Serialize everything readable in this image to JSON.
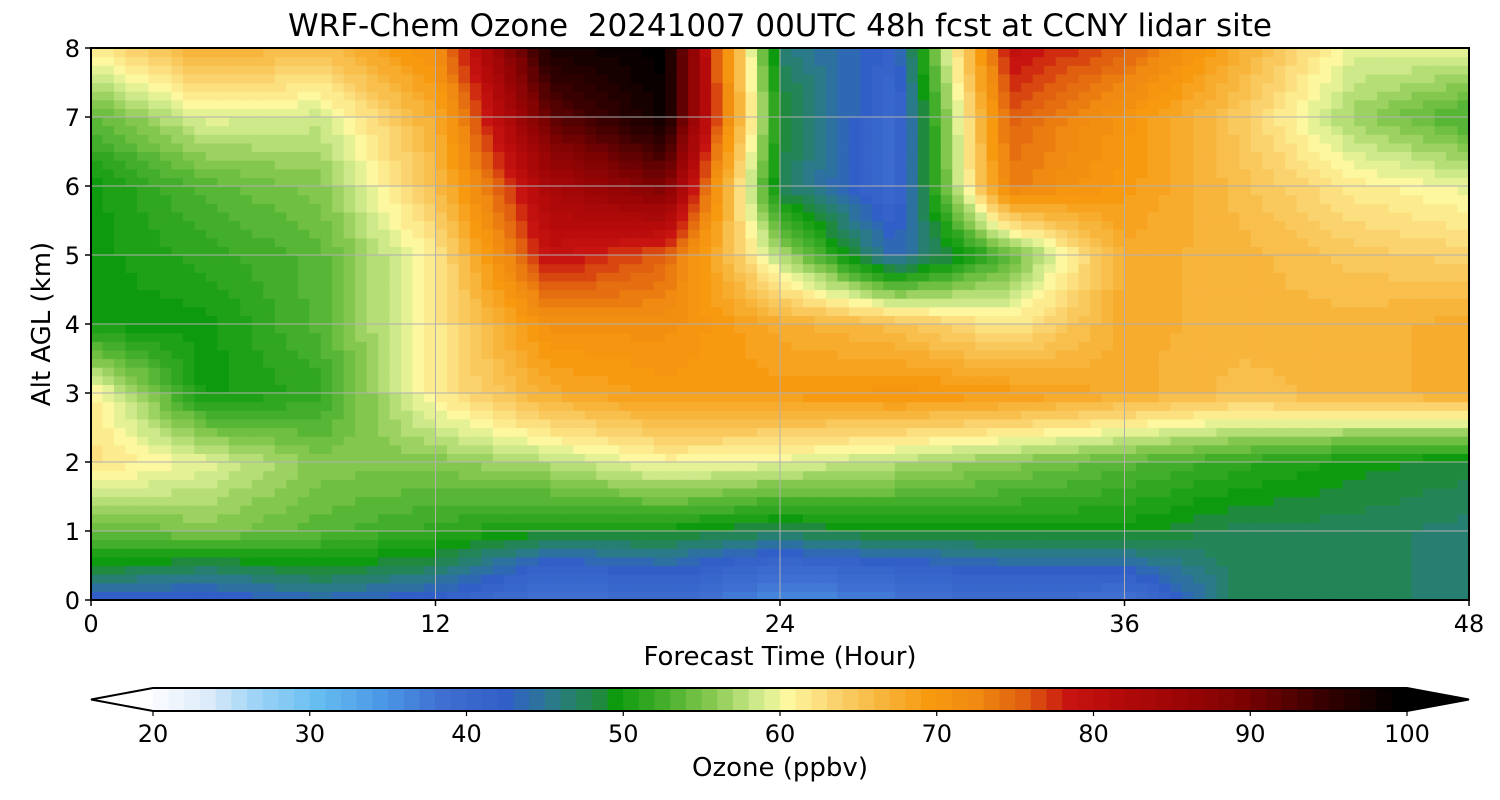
{
  "chart_data": [
    {
      "type": "heatmap",
      "title": "WRF-Chem Ozone  20241007 00UTC 48h fcst at CCNY lidar site",
      "xlabel": "Forecast Time (Hour)",
      "ylabel": "Alt AGL (km)",
      "xlim": [
        0,
        48
      ],
      "ylim": [
        0,
        8
      ],
      "xticks": [
        "0",
        "12",
        "24",
        "36",
        "48"
      ],
      "yticks": [
        "0",
        "1",
        "2",
        "3",
        "4",
        "5",
        "6",
        "7",
        "8"
      ],
      "grid": true,
      "x": [
        0,
        4,
        8,
        12,
        16,
        20,
        24,
        28,
        32,
        36,
        40,
        44,
        48
      ],
      "y": [
        0,
        0.5,
        1,
        2,
        3,
        4,
        5,
        6,
        7,
        8
      ],
      "z": [
        [
          42,
          42,
          44,
          42,
          38,
          40,
          36,
          38,
          40,
          38,
          48,
          48,
          47
        ],
        [
          50,
          48,
          50,
          48,
          42,
          44,
          40,
          42,
          44,
          44,
          48,
          48,
          47
        ],
        [
          54,
          56,
          54,
          52,
          50,
          50,
          48,
          50,
          50,
          50,
          48,
          48,
          47
        ],
        [
          63,
          60,
          56,
          56,
          58,
          61,
          60,
          58,
          56,
          54,
          52,
          50,
          49
        ],
        [
          62,
          50,
          52,
          62,
          68,
          70,
          70,
          71,
          70,
          68,
          66,
          67,
          68
        ],
        [
          50,
          50,
          54,
          62,
          72,
          72,
          68,
          66,
          62,
          68,
          67,
          67,
          68
        ],
        [
          50,
          52,
          54,
          62,
          80,
          76,
          58,
          44,
          54,
          68,
          67,
          65,
          64
        ],
        [
          50,
          54,
          56,
          66,
          84,
          90,
          48,
          40,
          74,
          70,
          66,
          62,
          60
        ],
        [
          54,
          60,
          59,
          68,
          92,
          99,
          50,
          40,
          76,
          71,
          65,
          57,
          53
        ],
        [
          62,
          68,
          66,
          72,
          98,
          100,
          47,
          42,
          80,
          76,
          68,
          60,
          60
        ]
      ]
    },
    {
      "type": "colorbar",
      "label": "Ozone  (ppbv)",
      "range": [
        20,
        100
      ],
      "ticks": [
        "20",
        "30",
        "40",
        "50",
        "60",
        "70",
        "80",
        "90",
        "100"
      ],
      "extend": "both",
      "colormap": [
        [
          20,
          "#ffffff"
        ],
        [
          24,
          "#dcebf9"
        ],
        [
          27,
          "#9fd4f6"
        ],
        [
          31,
          "#66bdf0"
        ],
        [
          35,
          "#4b98e6"
        ],
        [
          39,
          "#3f6fd0"
        ],
        [
          43,
          "#315fc8"
        ],
        [
          46,
          "#2a7a8a"
        ],
        [
          49,
          "#1f8a3e"
        ],
        [
          50,
          "#0e9a0e"
        ],
        [
          53,
          "#42ae2a"
        ],
        [
          56,
          "#84c74e"
        ],
        [
          59,
          "#cde98a"
        ],
        [
          61,
          "#fdf8a0"
        ],
        [
          64,
          "#fbd36e"
        ],
        [
          67,
          "#f8b53c"
        ],
        [
          70,
          "#f79a10"
        ],
        [
          73,
          "#f08a10"
        ],
        [
          76,
          "#e06010"
        ],
        [
          79,
          "#c81410"
        ],
        [
          82,
          "#b40a0a"
        ],
        [
          86,
          "#9c0505"
        ],
        [
          90,
          "#7c0202"
        ],
        [
          95,
          "#380000"
        ],
        [
          100,
          "#000000"
        ]
      ]
    }
  ]
}
